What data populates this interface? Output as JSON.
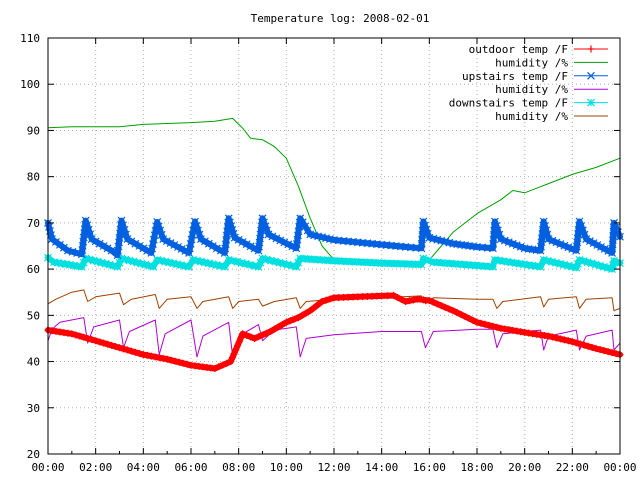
{
  "chart_data": {
    "type": "line",
    "title": "Temperature log: 2008-02-01",
    "xlabel": "",
    "ylabel": "",
    "xlim": [
      "00:00",
      "24:00"
    ],
    "ylim": [
      20,
      110
    ],
    "grid": true,
    "legend_position": "top-right",
    "x_tick_labels": [
      "00:00",
      "02:00",
      "04:00",
      "06:00",
      "08:00",
      "10:00",
      "12:00",
      "14:00",
      "16:00",
      "18:00",
      "20:00",
      "22:00",
      "00:00"
    ],
    "y_tick_labels": [
      "20",
      "30",
      "40",
      "50",
      "60",
      "70",
      "80",
      "90",
      "100",
      "110"
    ],
    "series": [
      {
        "name": "outdoor temp /F",
        "color": "#ff0000",
        "style": "thick line with + markers",
        "points": [
          [
            "00:00",
            46.8
          ],
          [
            "01:00",
            46.0
          ],
          [
            "02:00",
            44.5
          ],
          [
            "03:00",
            43.0
          ],
          [
            "04:00",
            41.5
          ],
          [
            "05:00",
            40.5
          ],
          [
            "06:00",
            39.2
          ],
          [
            "07:00",
            38.5
          ],
          [
            "07:40",
            40.0
          ],
          [
            "08:10",
            46.0
          ],
          [
            "08:40",
            45.0
          ],
          [
            "09:20",
            46.5
          ],
          [
            "10:00",
            48.5
          ],
          [
            "10:30",
            49.5
          ],
          [
            "11:00",
            51.0
          ],
          [
            "11:30",
            53.0
          ],
          [
            "12:00",
            53.8
          ],
          [
            "13:00",
            54.0
          ],
          [
            "14:00",
            54.2
          ],
          [
            "14:30",
            54.3
          ],
          [
            "15:00",
            53.0
          ],
          [
            "15:30",
            53.5
          ],
          [
            "16:00",
            53.2
          ],
          [
            "17:00",
            51.0
          ],
          [
            "18:00",
            48.5
          ],
          [
            "19:00",
            47.2
          ],
          [
            "20:00",
            46.3
          ],
          [
            "21:00",
            45.5
          ],
          [
            "22:00",
            44.3
          ],
          [
            "23:00",
            42.8
          ],
          [
            "24:00",
            41.5
          ]
        ]
      },
      {
        "name": "humidity /%",
        "color": "#00a000",
        "style": "thin line",
        "points": [
          [
            "00:00",
            90.6
          ],
          [
            "01:00",
            90.8
          ],
          [
            "02:00",
            90.8
          ],
          [
            "03:00",
            90.8
          ],
          [
            "04:00",
            91.3
          ],
          [
            "05:00",
            91.5
          ],
          [
            "06:00",
            91.7
          ],
          [
            "07:00",
            92.0
          ],
          [
            "07:45",
            92.6
          ],
          [
            "08:10",
            90.5
          ],
          [
            "08:30",
            88.3
          ],
          [
            "09:00",
            88.0
          ],
          [
            "09:30",
            86.5
          ],
          [
            "10:00",
            84.0
          ],
          [
            "10:30",
            78.0
          ],
          [
            "11:00",
            71.0
          ],
          [
            "11:30",
            65.0
          ],
          [
            "12:00",
            62.0
          ],
          [
            "13:00",
            61.0
          ],
          [
            "14:00",
            60.8
          ],
          [
            "15:00",
            60.8
          ],
          [
            "15:30",
            61.0
          ],
          [
            "16:00",
            62.0
          ],
          [
            "16:30",
            65.0
          ],
          [
            "17:00",
            68.0
          ],
          [
            "18:00",
            72.0
          ],
          [
            "19:00",
            75.0
          ],
          [
            "19:30",
            77.0
          ],
          [
            "20:00",
            76.5
          ],
          [
            "20:30",
            77.5
          ],
          [
            "21:00",
            78.5
          ],
          [
            "22:00",
            80.5
          ],
          [
            "23:00",
            82.0
          ],
          [
            "24:00",
            84.0
          ]
        ]
      },
      {
        "name": "upstairs temp /F",
        "color": "#0060e0",
        "style": "thick line with x markers",
        "points": [
          [
            "00:00",
            70.0
          ],
          [
            "00:10",
            66.5
          ],
          [
            "00:50",
            64.0
          ],
          [
            "01:25",
            63.2
          ],
          [
            "01:35",
            70.5
          ],
          [
            "01:50",
            66.5
          ],
          [
            "02:40",
            64.0
          ],
          [
            "02:55",
            63.0
          ],
          [
            "03:05",
            70.5
          ],
          [
            "03:20",
            66.5
          ],
          [
            "04:20",
            63.5
          ],
          [
            "04:35",
            70.2
          ],
          [
            "04:50",
            66.5
          ],
          [
            "05:55",
            63.5
          ],
          [
            "06:10",
            70.3
          ],
          [
            "06:25",
            66.5
          ],
          [
            "07:25",
            63.5
          ],
          [
            "07:35",
            71.0
          ],
          [
            "07:50",
            66.8
          ],
          [
            "08:50",
            64.0
          ],
          [
            "09:00",
            71.0
          ],
          [
            "09:15",
            67.5
          ],
          [
            "10:25",
            64.5
          ],
          [
            "10:35",
            71.0
          ],
          [
            "11:00",
            67.5
          ],
          [
            "12:00",
            66.3
          ],
          [
            "13:00",
            65.8
          ],
          [
            "14:00",
            65.3
          ],
          [
            "15:00",
            64.8
          ],
          [
            "15:40",
            64.5
          ],
          [
            "15:45",
            70.3
          ],
          [
            "16:00",
            66.8
          ],
          [
            "17:00",
            65.5
          ],
          [
            "18:00",
            64.8
          ],
          [
            "18:40",
            64.5
          ],
          [
            "18:45",
            70.3
          ],
          [
            "19:00",
            66.5
          ],
          [
            "20:00",
            64.5
          ],
          [
            "20:40",
            64.0
          ],
          [
            "20:48",
            70.3
          ],
          [
            "21:00",
            66.5
          ],
          [
            "22:10",
            64.0
          ],
          [
            "22:18",
            70.3
          ],
          [
            "22:35",
            66.5
          ],
          [
            "23:40",
            63.5
          ],
          [
            "23:45",
            70.0
          ],
          [
            "24:00",
            67.0
          ]
        ]
      },
      {
        "name": "humidity /%",
        "color": "#b000d0",
        "style": "thin line",
        "points": [
          [
            "00:00",
            44.5
          ],
          [
            "00:10",
            47.0
          ],
          [
            "00:30",
            48.5
          ],
          [
            "01:30",
            49.5
          ],
          [
            "01:40",
            44.0
          ],
          [
            "01:55",
            47.5
          ],
          [
            "03:00",
            49.0
          ],
          [
            "03:10",
            43.0
          ],
          [
            "03:25",
            46.5
          ],
          [
            "04:30",
            49.0
          ],
          [
            "04:40",
            41.5
          ],
          [
            "04:55",
            46.0
          ],
          [
            "06:00",
            49.0
          ],
          [
            "06:15",
            41.0
          ],
          [
            "06:30",
            45.5
          ],
          [
            "07:35",
            48.5
          ],
          [
            "07:45",
            41.0
          ],
          [
            "08:00",
            45.5
          ],
          [
            "08:50",
            48.0
          ],
          [
            "09:00",
            44.5
          ],
          [
            "09:30",
            46.8
          ],
          [
            "10:25",
            47.5
          ],
          [
            "10:35",
            41.0
          ],
          [
            "10:50",
            45.0
          ],
          [
            "12:00",
            45.8
          ],
          [
            "14:00",
            46.5
          ],
          [
            "15:40",
            46.5
          ],
          [
            "15:50",
            43.0
          ],
          [
            "16:10",
            46.5
          ],
          [
            "18:00",
            47.0
          ],
          [
            "18:40",
            47.0
          ],
          [
            "18:50",
            43.0
          ],
          [
            "19:05",
            46.0
          ],
          [
            "20:40",
            46.8
          ],
          [
            "20:48",
            42.5
          ],
          [
            "21:00",
            45.5
          ],
          [
            "22:10",
            46.8
          ],
          [
            "22:18",
            42.5
          ],
          [
            "22:35",
            45.5
          ],
          [
            "23:40",
            46.8
          ],
          [
            "23:45",
            42.5
          ],
          [
            "24:00",
            44.0
          ]
        ]
      },
      {
        "name": "downstairs temp /F",
        "color": "#00e0e0",
        "style": "thick line with * markers",
        "points": [
          [
            "00:00",
            62.5
          ],
          [
            "00:15",
            61.5
          ],
          [
            "01:25",
            60.5
          ],
          [
            "01:35",
            62.3
          ],
          [
            "02:55",
            60.5
          ],
          [
            "03:05",
            62.3
          ],
          [
            "04:25",
            60.5
          ],
          [
            "04:35",
            62.0
          ],
          [
            "05:55",
            60.5
          ],
          [
            "06:05",
            62.0
          ],
          [
            "07:25",
            60.5
          ],
          [
            "07:35",
            62.0
          ],
          [
            "08:50",
            60.5
          ],
          [
            "09:00",
            62.3
          ],
          [
            "10:25",
            60.5
          ],
          [
            "10:35",
            62.3
          ],
          [
            "12:00",
            61.8
          ],
          [
            "14:00",
            61.3
          ],
          [
            "15:40",
            61.0
          ],
          [
            "15:45",
            62.3
          ],
          [
            "16:10",
            61.5
          ],
          [
            "18:40",
            60.5
          ],
          [
            "18:45",
            62.0
          ],
          [
            "20:40",
            60.5
          ],
          [
            "20:48",
            62.0
          ],
          [
            "22:10",
            60.3
          ],
          [
            "22:18",
            62.0
          ],
          [
            "23:40",
            60.0
          ],
          [
            "23:45",
            61.8
          ],
          [
            "24:00",
            61.3
          ]
        ]
      },
      {
        "name": "humidity /%",
        "color": "#a04000",
        "style": "thin line",
        "points": [
          [
            "00:00",
            52.5
          ],
          [
            "00:20",
            53.5
          ],
          [
            "01:00",
            55.0
          ],
          [
            "01:30",
            55.5
          ],
          [
            "01:40",
            53.0
          ],
          [
            "02:00",
            54.0
          ],
          [
            "03:00",
            54.8
          ],
          [
            "03:10",
            52.3
          ],
          [
            "03:30",
            53.5
          ],
          [
            "04:30",
            54.5
          ],
          [
            "04:40",
            51.5
          ],
          [
            "05:00",
            53.5
          ],
          [
            "06:00",
            54.0
          ],
          [
            "06:15",
            51.5
          ],
          [
            "06:30",
            53.0
          ],
          [
            "07:35",
            54.0
          ],
          [
            "07:45",
            51.5
          ],
          [
            "08:00",
            53.0
          ],
          [
            "08:50",
            53.5
          ],
          [
            "09:00",
            52.0
          ],
          [
            "09:30",
            53.0
          ],
          [
            "10:25",
            53.8
          ],
          [
            "10:35",
            51.5
          ],
          [
            "10:50",
            53.0
          ],
          [
            "12:00",
            53.5
          ],
          [
            "14:00",
            53.8
          ],
          [
            "15:40",
            54.2
          ],
          [
            "15:50",
            52.5
          ],
          [
            "16:10",
            53.8
          ],
          [
            "18:00",
            53.5
          ],
          [
            "18:40",
            53.5
          ],
          [
            "18:50",
            51.5
          ],
          [
            "19:05",
            53.0
          ],
          [
            "20:40",
            54.0
          ],
          [
            "20:48",
            51.8
          ],
          [
            "21:00",
            53.5
          ],
          [
            "22:10",
            54.0
          ],
          [
            "22:18",
            51.5
          ],
          [
            "22:35",
            53.5
          ],
          [
            "23:40",
            53.8
          ],
          [
            "23:45",
            51.0
          ],
          [
            "24:00",
            51.5
          ]
        ]
      }
    ]
  }
}
